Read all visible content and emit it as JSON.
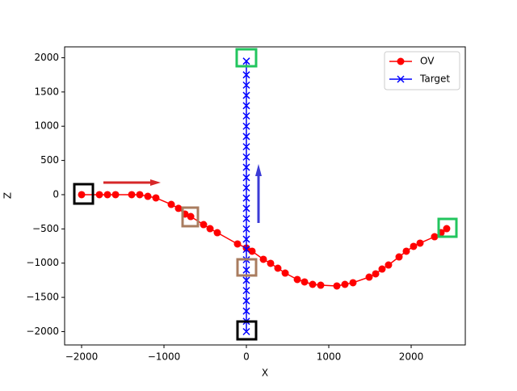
{
  "chart_data": {
    "type": "line",
    "xlabel": "X",
    "ylabel": "Z",
    "xlim": [
      -2206,
      2657
    ],
    "ylim": [
      -2195,
      2159
    ],
    "xticks": [
      {
        "value": -2000,
        "label": "−2000"
      },
      {
        "value": -1000,
        "label": "−1000"
      },
      0,
      1000,
      2000
    ],
    "yticks": [
      {
        "value": -2000,
        "label": "−2000"
      },
      {
        "value": -1500,
        "label": "−1500"
      },
      {
        "value": -1000,
        "label": "−1000"
      },
      {
        "value": -500,
        "label": "−500"
      },
      0,
      500,
      1000,
      1500,
      2000
    ],
    "legend": "upper right",
    "series": [
      {
        "name": "OV",
        "color": "#ff0000",
        "marker": "o",
        "x": [
          -2000,
          -1784,
          -1686,
          -1588,
          -1392,
          -1294,
          -1196,
          -1098,
          -912,
          -824,
          -745,
          -676,
          -520,
          -441,
          -353,
          -108,
          0,
          69,
          206,
          294,
          382,
          471,
          618,
          706,
          804,
          902,
          1098,
          1196,
          1294,
          1490,
          1569,
          1647,
          1725,
          1853,
          1941,
          2029,
          2108,
          2284,
          2363,
          2431
        ],
        "values": [
          0,
          0,
          0,
          0,
          0,
          0,
          -24,
          -47,
          -142,
          -200,
          -283,
          -319,
          -437,
          -496,
          -555,
          -720,
          -779,
          -826,
          -944,
          -1003,
          -1074,
          -1145,
          -1239,
          -1274,
          -1310,
          -1322,
          -1333,
          -1310,
          -1286,
          -1204,
          -1156,
          -1086,
          -1027,
          -909,
          -826,
          -755,
          -708,
          -614,
          -555,
          -496
        ]
      },
      {
        "name": "Target",
        "color": "#0000ff",
        "marker": "x",
        "x": [
          0,
          0,
          0,
          0,
          0,
          0,
          0,
          0,
          0,
          0,
          0,
          0,
          0,
          0,
          0,
          0,
          0,
          0,
          0,
          0,
          0,
          0,
          0,
          0,
          0,
          0,
          0
        ],
        "values": [
          -2000,
          -1850,
          -1700,
          -1550,
          -1400,
          -1250,
          -1100,
          -950,
          -800,
          -650,
          -500,
          -350,
          -200,
          -50,
          100,
          250,
          400,
          550,
          700,
          850,
          1000,
          1150,
          1300,
          1450,
          1600,
          1750,
          1950
        ]
      }
    ]
  }
}
